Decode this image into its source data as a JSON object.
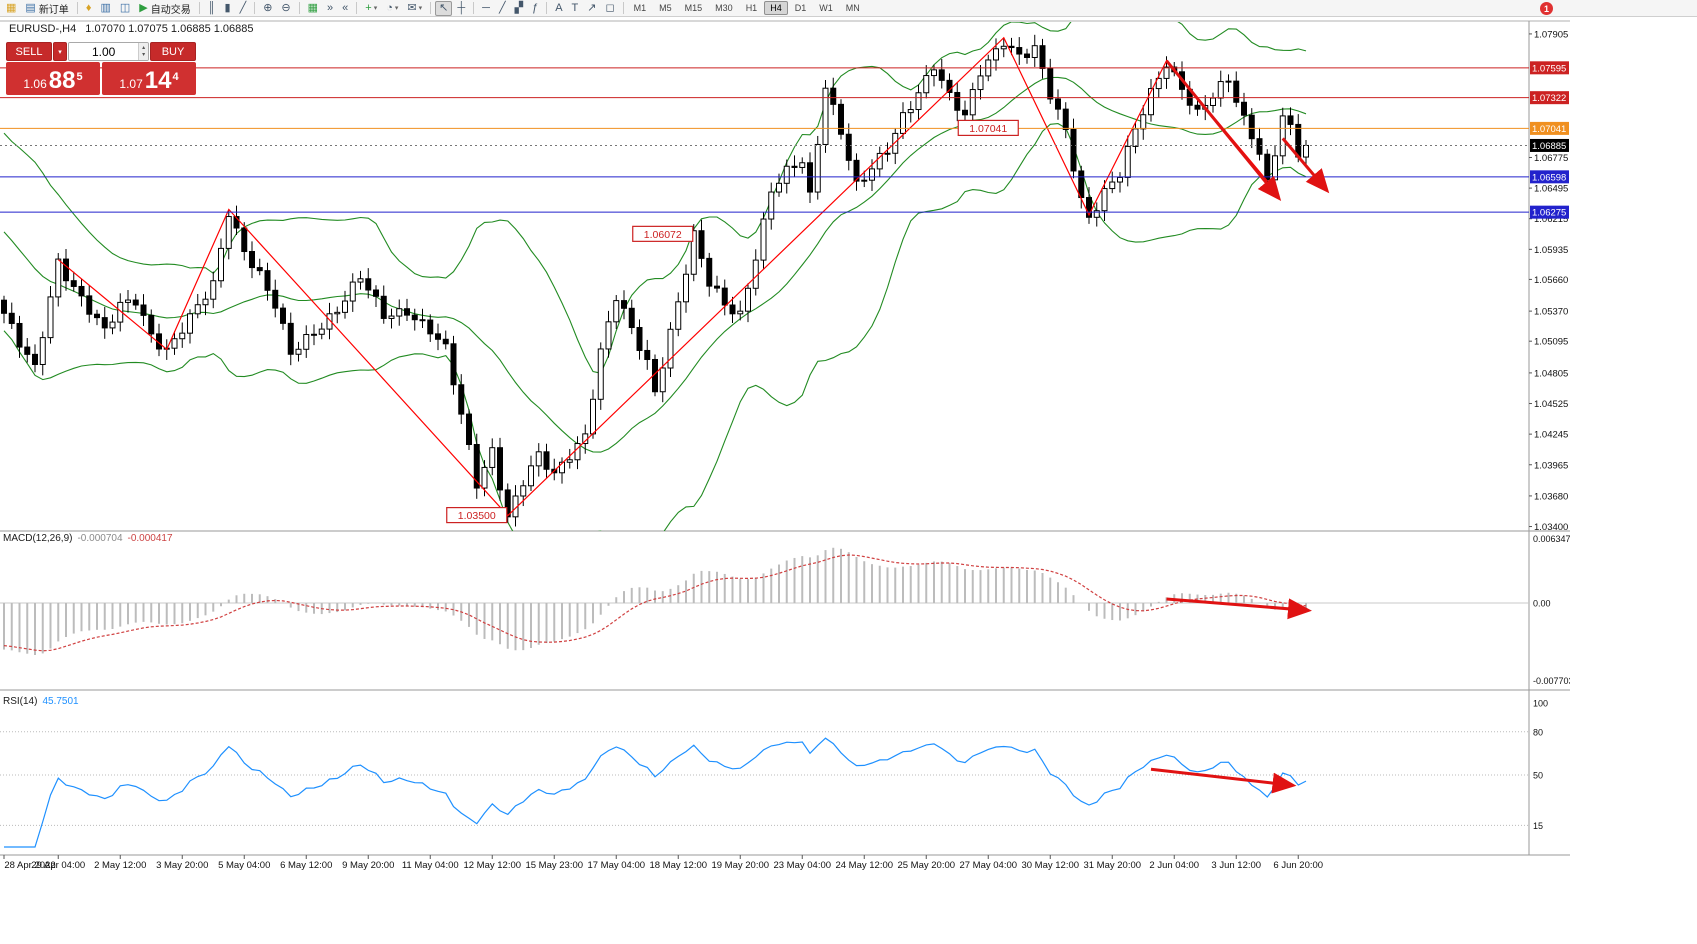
{
  "chart_header": {
    "symbol_period": "EURUSD-,H4",
    "ohlc": "1.07070 1.07075 1.06885 1.06885"
  },
  "glyphs": {
    "caret_down": "▾",
    "caret_up": "▴"
  },
  "quote_panel": {
    "sell_label": "SELL",
    "buy_label": "BUY",
    "volume": "1.00",
    "sell_small": "1.06",
    "sell_big": "88",
    "sell_sup": "5",
    "buy_small": "1.07",
    "buy_big": "14",
    "buy_sup": "4"
  },
  "toolbar": {
    "items": [
      {
        "name": "chart-window-icon",
        "glyph": "▦",
        "color": "#d8a326"
      },
      {
        "name": "new-order-button",
        "glyph": "▤",
        "label": "新订单",
        "color": "#3a6ea5"
      },
      {
        "sep": true
      },
      {
        "name": "navigator-icon",
        "glyph": "♦",
        "color": "#d8a326"
      },
      {
        "name": "market-watch-icon",
        "glyph": "▥",
        "color": "#3a6ea5"
      },
      {
        "name": "data-window-icon",
        "glyph": "◫",
        "color": "#3a6ea5"
      },
      {
        "name": "autotrading-button",
        "glyph": "▶",
        "label": "自动交易",
        "color": "#2e9e3f"
      },
      {
        "sep": true
      },
      {
        "name": "bar-chart-icon",
        "glyph": "║"
      },
      {
        "name": "candle-chart-icon",
        "glyph": "▮"
      },
      {
        "name": "line-chart-icon",
        "glyph": "╱"
      },
      {
        "sep": true
      },
      {
        "name": "zoom-in-icon",
        "glyph": "⊕"
      },
      {
        "name": "zoom-out-icon",
        "glyph": "⊖"
      },
      {
        "sep": true
      },
      {
        "name": "tile-windows-icon",
        "glyph": "▦",
        "color": "#2e9e3f"
      },
      {
        "name": "auto-scroll-icon",
        "glyph": "»"
      },
      {
        "name": "chart-shift-icon",
        "glyph": "«"
      },
      {
        "sep": true
      },
      {
        "name": "indicators-icon",
        "glyph": "+",
        "color": "#2e9e3f",
        "dd": true
      },
      {
        "name": "periods-icon",
        "glyph": "◔",
        "dd": true
      },
      {
        "name": "templates-icon",
        "glyph": "✉",
        "dd": true
      },
      {
        "sep": true
      },
      {
        "name": "cursor-icon",
        "glyph": "↖",
        "active": true
      },
      {
        "name": "crosshair-icon",
        "glyph": "┼"
      },
      {
        "sep": true
      },
      {
        "name": "horizontal-line-icon",
        "glyph": "─"
      },
      {
        "name": "trendline-icon",
        "glyph": "╱"
      },
      {
        "name": "equidistant-channel-icon",
        "glyph": "▞"
      },
      {
        "name": "fibonacci-icon",
        "glyph": "ƒ"
      },
      {
        "sep": true
      },
      {
        "name": "text-icon",
        "glyph": "A"
      },
      {
        "name": "text-label-icon",
        "glyph": "T"
      },
      {
        "name": "arrows-icon",
        "glyph": "↗"
      },
      {
        "name": "shapes-icon",
        "glyph": "◻"
      },
      {
        "sep": true
      }
    ],
    "timeframes": [
      {
        "label": "M1"
      },
      {
        "label": "M5"
      },
      {
        "label": "M15"
      },
      {
        "label": "M30"
      },
      {
        "label": "H1"
      },
      {
        "label": "H4",
        "active": true
      },
      {
        "label": "D1"
      },
      {
        "label": "W1"
      },
      {
        "label": "MN"
      }
    ],
    "notification": {
      "count": "1"
    }
  },
  "macd": {
    "name": "MACD(12,26,9)",
    "value": "-0.000704",
    "signal": "-0.000417"
  },
  "rsi": {
    "name": "RSI(14)",
    "value": "45.7501"
  },
  "chart_data": {
    "type": "candlestick",
    "symbol": "EURUSD-",
    "period": "H4",
    "candle_count": 169,
    "close_anchors": [
      [
        0,
        1.0535
      ],
      [
        2,
        1.0505
      ],
      [
        4,
        1.0482
      ],
      [
        7,
        1.0584
      ],
      [
        10,
        1.055
      ],
      [
        13,
        1.0516
      ],
      [
        15,
        1.054
      ],
      [
        17,
        1.0548
      ],
      [
        19,
        1.0518
      ],
      [
        21,
        1.0502
      ],
      [
        24,
        1.0528
      ],
      [
        27,
        1.056
      ],
      [
        29,
        1.063
      ],
      [
        31,
        1.0595
      ],
      [
        33,
        1.057
      ],
      [
        35,
        1.054
      ],
      [
        37,
        1.0496
      ],
      [
        40,
        1.052
      ],
      [
        43,
        1.054
      ],
      [
        46,
        1.0566
      ],
      [
        49,
        1.0532
      ],
      [
        52,
        1.054
      ],
      [
        55,
        1.052
      ],
      [
        57,
        1.05
      ],
      [
        59,
        1.044
      ],
      [
        61,
        1.038
      ],
      [
        63,
        1.0412
      ],
      [
        65,
        1.035
      ],
      [
        67,
        1.038
      ],
      [
        69,
        1.0402
      ],
      [
        71,
        1.0386
      ],
      [
        73,
        1.0408
      ],
      [
        75,
        1.0426
      ],
      [
        77,
        1.05
      ],
      [
        79,
        1.0548
      ],
      [
        81,
        1.0518
      ],
      [
        83,
        1.049
      ],
      [
        84,
        1.0465
      ],
      [
        86,
        1.052
      ],
      [
        88,
        1.0575
      ],
      [
        89,
        1.0605
      ],
      [
        91,
        1.056
      ],
      [
        93,
        1.0542
      ],
      [
        95,
        1.0535
      ],
      [
        97,
        1.059
      ],
      [
        99,
        1.0648
      ],
      [
        101,
        1.0662
      ],
      [
        103,
        1.0672
      ],
      [
        104,
        1.064
      ],
      [
        106,
        1.0745
      ],
      [
        108,
        1.0705
      ],
      [
        110,
        1.0652
      ],
      [
        112,
        1.0665
      ],
      [
        114,
        1.0682
      ],
      [
        116,
        1.0715
      ],
      [
        118,
        1.074
      ],
      [
        120,
        1.0764
      ],
      [
        122,
        1.0732
      ],
      [
        124,
        1.0712
      ],
      [
        126,
        1.0755
      ],
      [
        129,
        1.0787
      ],
      [
        131,
        1.0772
      ],
      [
        133,
        1.0776
      ],
      [
        135,
        1.0732
      ],
      [
        137,
        1.07
      ],
      [
        139,
        1.064
      ],
      [
        140,
        1.0625
      ],
      [
        142,
        1.0648
      ],
      [
        144,
        1.0662
      ],
      [
        146,
        1.07
      ],
      [
        148,
        1.0735
      ],
      [
        150,
        1.0766
      ],
      [
        152,
        1.0744
      ],
      [
        154,
        1.0718
      ],
      [
        156,
        1.0732
      ],
      [
        158,
        1.0746
      ],
      [
        160,
        1.0712
      ],
      [
        162,
        1.0686
      ],
      [
        163,
        1.0656
      ],
      [
        164,
        1.0684
      ],
      [
        165,
        1.0718
      ],
      [
        166,
        1.0702
      ],
      [
        167,
        1.0678
      ],
      [
        168,
        1.0689
      ]
    ],
    "y_axis": {
      "ticks": [
        "1.07905",
        "1.06775",
        "1.06495",
        "1.06215",
        "1.05935",
        "1.05660",
        "1.05370",
        "1.05095",
        "1.04805",
        "1.04525",
        "1.04245",
        "1.03965",
        "1.03680",
        "1.03400"
      ]
    },
    "x_axis": {
      "labels": [
        [
          0,
          "28 Apr 2022"
        ],
        [
          7,
          "29 Apr 04:00"
        ],
        [
          15,
          "2 May 12:00"
        ],
        [
          23,
          "3 May 20:00"
        ],
        [
          31,
          "5 May 04:00"
        ],
        [
          39,
          "6 May 12:00"
        ],
        [
          47,
          "9 May 20:00"
        ],
        [
          55,
          "11 May 04:00"
        ],
        [
          63,
          "12 May 12:00"
        ],
        [
          71,
          "15 May 23:00"
        ],
        [
          79,
          "17 May 04:00"
        ],
        [
          87,
          "18 May 12:00"
        ],
        [
          95,
          "19 May 20:00"
        ],
        [
          103,
          "23 May 04:00"
        ],
        [
          111,
          "24 May 12:00"
        ],
        [
          119,
          "25 May 20:00"
        ],
        [
          127,
          "27 May 04:00"
        ],
        [
          135,
          "30 May 12:00"
        ],
        [
          143,
          "31 May 20:00"
        ],
        [
          151,
          "2 Jun 04:00"
        ],
        [
          159,
          "3 Jun 12:00"
        ],
        [
          167,
          "6 Jun 20:00"
        ]
      ]
    },
    "levels": [
      {
        "price": 1.07595,
        "color": "#cc2222",
        "label": "1.07595"
      },
      {
        "price": 1.07322,
        "color": "#cc2222",
        "label": "1.07322"
      },
      {
        "price": 1.07041,
        "color": "#f09020",
        "label": "1.07041"
      },
      {
        "price": 1.06885,
        "color": "#000000",
        "label": "1.06885",
        "current": true
      },
      {
        "price": 1.06598,
        "color": "#2222cc",
        "label": "1.06598"
      },
      {
        "price": 1.06275,
        "color": "#2222cc",
        "label": "1.06275"
      }
    ],
    "zigzag": [
      [
        7,
        1.0584
      ],
      [
        21,
        1.0502
      ],
      [
        29,
        1.063
      ],
      [
        65,
        1.035
      ],
      [
        129,
        1.0787
      ],
      [
        140,
        1.0625
      ],
      [
        150,
        1.0766
      ],
      [
        163,
        1.0656
      ]
    ],
    "price_labels": [
      {
        "text": "1.07041",
        "index": 127,
        "price": 1.07041
      },
      {
        "text": "1.06072",
        "index": 85,
        "price": 1.06072
      },
      {
        "text": "1.03500",
        "index": 61,
        "price": 1.035
      }
    ],
    "trend_arrows": {
      "main": [
        [
          [
            150,
            1.0766
          ],
          [
            164.3,
            1.0642
          ]
        ],
        [
          [
            165,
            1.0695
          ],
          [
            170.5,
            1.0649
          ]
        ]
      ],
      "macd": [
        [
          150,
          0.0004
        ],
        [
          168,
          -0.0007
        ]
      ],
      "rsi": [
        [
          148,
          54
        ],
        [
          166,
          43
        ]
      ]
    },
    "indicators": {
      "bollinger": {
        "period": 20,
        "deviation": 2,
        "color": "#228b22"
      },
      "macd": {
        "fast": 12,
        "slow": 26,
        "signal": 9,
        "hist_color": "#bcbcbc",
        "signal_color": "#d04040",
        "scale_labels": [
          "0.006347",
          "0.00",
          "-0.007703"
        ],
        "scale_values": [
          0.006347,
          0,
          -0.007703
        ]
      },
      "rsi": {
        "period": 14,
        "color": "#1e90ff",
        "scale_labels": [
          "100",
          "80",
          "50",
          "15"
        ],
        "scale_values": [
          100,
          80,
          50,
          15
        ],
        "level_lines": [
          80,
          50,
          15
        ]
      }
    },
    "colors": {
      "bull": "#ffffff",
      "bear": "#000000",
      "outline": "#000000",
      "zigzag": "#ff0000",
      "arrow": "#e01212"
    }
  }
}
